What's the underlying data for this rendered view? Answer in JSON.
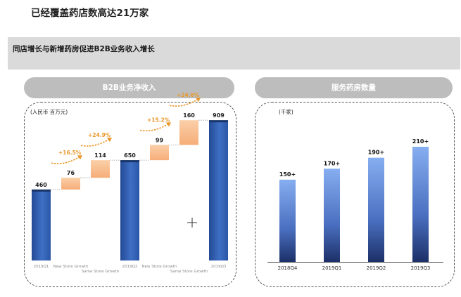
{
  "page": {
    "title": "已经覆盖药店数高达21万家",
    "banner": "同店增长与新增药房促进B2B业务收入增长"
  },
  "chart_data": [
    {
      "type": "bar",
      "variant": "waterfall",
      "title": "B2B业务净收入",
      "unit_label": "(人民币 百万元)",
      "categories": [
        "2019Q1",
        "New Store Growth",
        "Same Store Growth",
        "2019Q2",
        "New Store Growth",
        "Same Store Growth",
        "2019Q3"
      ],
      "values": [
        460,
        76,
        114,
        650,
        99,
        160,
        909
      ],
      "value_labels": [
        "460",
        "76",
        "114",
        "650",
        "99",
        "160",
        "909"
      ],
      "kinds": [
        "total",
        "delta",
        "delta",
        "total",
        "delta",
        "delta",
        "total"
      ],
      "growth_annotations": [
        {
          "after_index": 1,
          "text": "+16.5%"
        },
        {
          "after_index": 2,
          "text": "+24.9%"
        },
        {
          "after_index": 4,
          "text": "+15.2%"
        },
        {
          "after_index": 5,
          "text": "+24.6%"
        }
      ],
      "ylim": [
        0,
        960
      ],
      "colors": {
        "total": "#2e5cae",
        "delta": "#f9be90",
        "annotation": "#e8982c"
      }
    },
    {
      "type": "bar",
      "title": "服务药房数量",
      "unit_label": "(千家)",
      "categories": [
        "2018Q4",
        "2019Q1",
        "2019Q2",
        "2019Q3"
      ],
      "values": [
        150,
        170,
        190,
        210
      ],
      "value_labels": [
        "150+",
        "170+",
        "190+",
        "210+"
      ],
      "ylim": [
        0,
        260
      ],
      "colors": {
        "bar_top": "#86aef0",
        "bar_bottom": "#1c3068"
      }
    }
  ]
}
